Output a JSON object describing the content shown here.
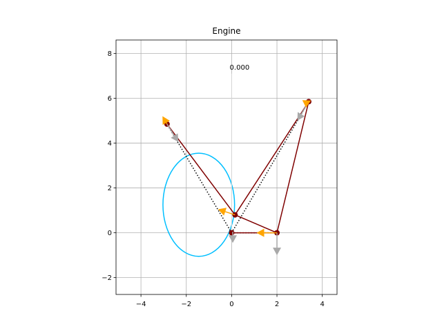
{
  "chart_data": {
    "type": "scatter",
    "title": "Engine",
    "xlabel": "",
    "ylabel": "",
    "xlim": [
      -5.1,
      4.65
    ],
    "ylim": [
      -2.75,
      8.6
    ],
    "xticks": [
      -4,
      -2,
      0,
      2,
      4
    ],
    "yticks": [
      -2,
      0,
      2,
      4,
      6,
      8
    ],
    "xtick_labels": [
      "−4",
      "−2",
      "0",
      "2",
      "4"
    ],
    "ytick_labels": [
      "−2",
      "0",
      "2",
      "4",
      "6",
      "8"
    ],
    "grid": true,
    "annotation": {
      "text": "0.000",
      "x": 0.35,
      "y": 7.4,
      "line_from": [
        0.0,
        7.1
      ],
      "line_to": [
        0.0,
        0.0
      ]
    },
    "ellipse": {
      "center": [
        -1.45,
        1.25
      ],
      "rx": 1.58,
      "ry": 2.3,
      "color": "#00bfff"
    },
    "dotted_lines": [
      {
        "from": [
          0.0,
          0.0
        ],
        "to": [
          -2.85,
          4.85
        ]
      },
      {
        "from": [
          0.0,
          0.0
        ],
        "to": [
          3.4,
          5.85
        ]
      },
      {
        "from": [
          0.0,
          0.0
        ],
        "to": [
          2.0,
          0.0
        ]
      }
    ],
    "links": [
      {
        "from": [
          0.0,
          0.0
        ],
        "to": [
          2.0,
          0.0
        ]
      },
      {
        "from": [
          2.0,
          0.0
        ],
        "to": [
          0.15,
          0.8
        ]
      },
      {
        "from": [
          0.15,
          0.8
        ],
        "to": [
          -2.85,
          4.85
        ]
      },
      {
        "from": [
          0.15,
          0.8
        ],
        "to": [
          3.4,
          5.85
        ]
      },
      {
        "from": [
          2.0,
          0.0
        ],
        "to": [
          3.4,
          5.85
        ]
      }
    ],
    "link_color": "#7f0000",
    "joints": [
      [
        0.0,
        0.0
      ],
      [
        2.0,
        0.0
      ],
      [
        0.15,
        0.8
      ],
      [
        -2.85,
        4.85
      ],
      [
        3.4,
        5.85
      ]
    ],
    "orange_arrows": [
      {
        "from": [
          2.0,
          0.0
        ],
        "to": [
          1.1,
          0.0
        ]
      },
      {
        "from": [
          0.15,
          0.8
        ],
        "to": [
          -0.6,
          1.05
        ]
      },
      {
        "from": [
          -2.85,
          4.85
        ],
        "to": [
          -3.05,
          5.2
        ]
      },
      {
        "from": [
          3.4,
          5.85
        ],
        "to": [
          3.5,
          5.9
        ]
      }
    ],
    "orange_color": "#ffa500",
    "gray_arrows": [
      {
        "from": [
          2.0,
          0.0
        ],
        "to": [
          2.0,
          -1.0
        ]
      },
      {
        "from": [
          0.05,
          0.05
        ],
        "to": [
          0.05,
          -0.45
        ]
      },
      {
        "from": [
          -2.85,
          4.85
        ],
        "to": [
          -2.35,
          4.05
        ]
      },
      {
        "from": [
          3.4,
          5.85
        ],
        "to": [
          2.9,
          5.0
        ]
      }
    ],
    "gray_color": "#a9a9a9"
  }
}
